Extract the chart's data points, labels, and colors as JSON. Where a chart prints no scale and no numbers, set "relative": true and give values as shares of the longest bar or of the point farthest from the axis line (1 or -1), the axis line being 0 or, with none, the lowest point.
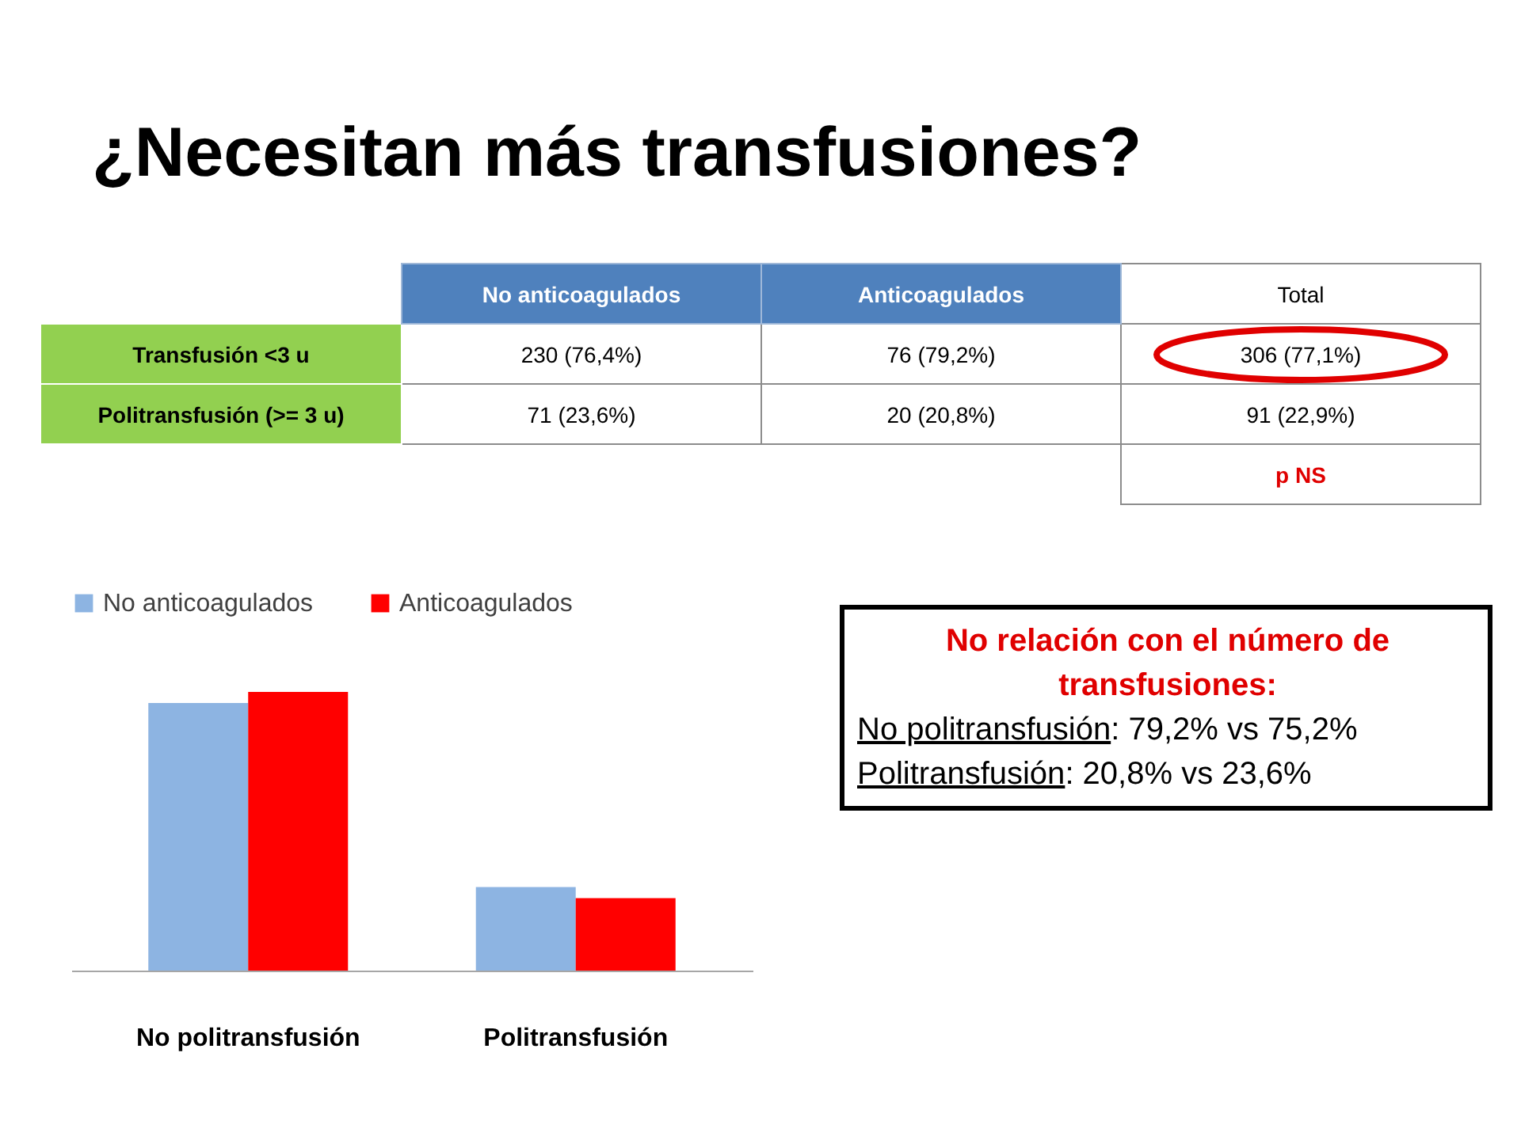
{
  "chart_data": [
    {
      "type": "other",
      "title": "¿Necesitan más transfusiones?",
      "categories": [
        "No anticoagulados",
        "Anticoagulados",
        "Total"
      ],
      "y_categories": [
        "Transfusión <3 u",
        "Politransfusión (>= 3 u)"
      ],
      "cell_labels": [
        [
          "230 (76,4%)",
          "76 (79,2%)",
          "306 (77,1%)"
        ],
        [
          "71 (23,6%)",
          "20 (20,8%)",
          "91 (22,9%)"
        ]
      ],
      "annotations": [
        "p NS"
      ]
    },
    {
      "type": "bar",
      "categories": [
        "No politransfusión",
        "Politransfusión"
      ],
      "series": [
        {
          "name": "No anticoagulados",
          "color": "#8db4e2",
          "values": [
            0.96,
            0.3
          ]
        },
        {
          "name": "Anticoagulados",
          "color": "#ff0000",
          "values": [
            1,
            0.26
          ]
        }
      ],
      "relative": true,
      "legend": "top",
      "annotations": [
        "No relación con el número de transfusiones:",
        "No politransfusión: 79,2% vs 75,2%",
        "Politransfusión: 20,8% vs 23,6%"
      ]
    }
  ]
}
